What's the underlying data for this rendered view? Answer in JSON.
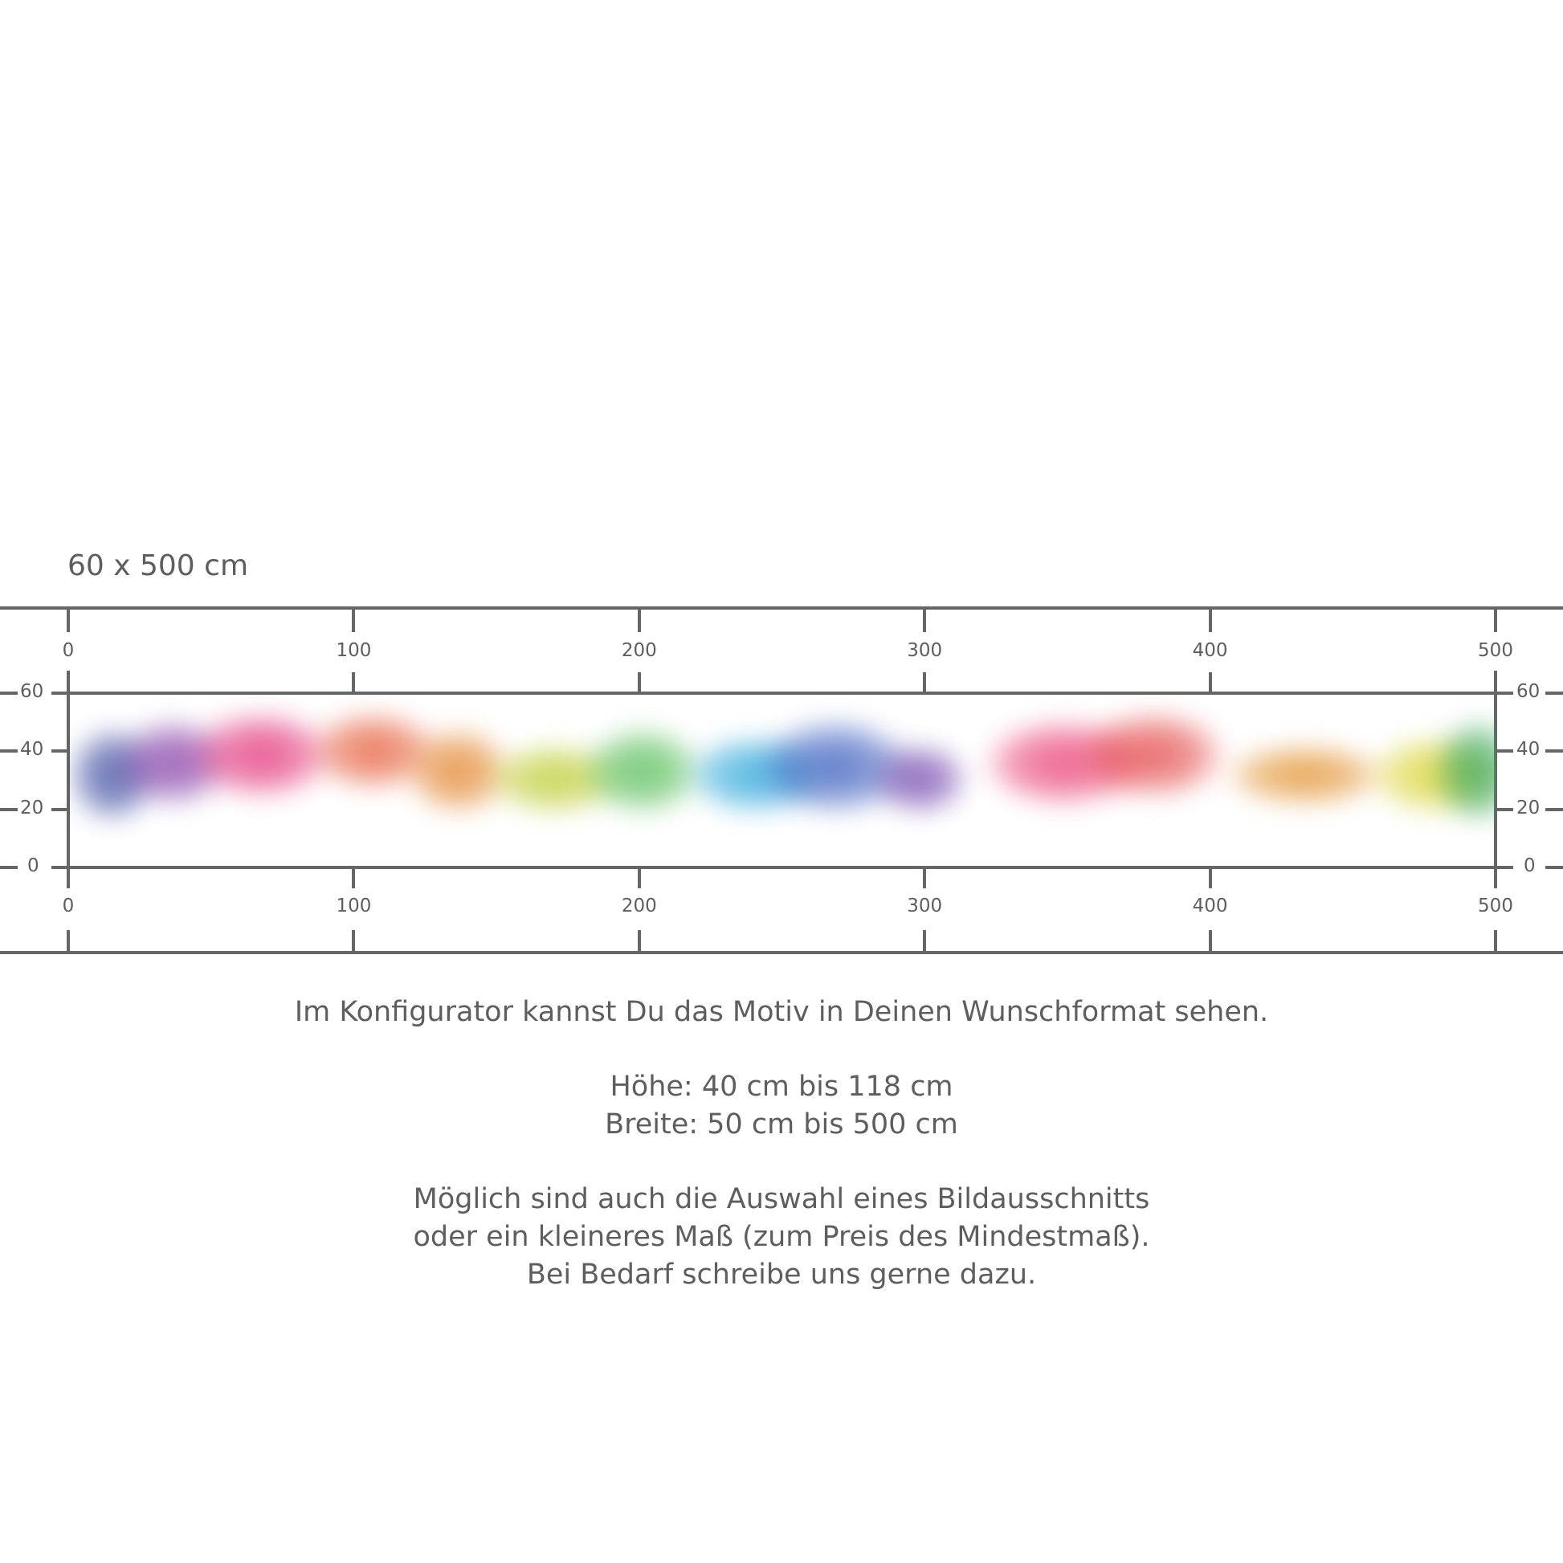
{
  "size_label": "60 x 500 cm",
  "ruler": {
    "x_ticks": [
      "0",
      "100",
      "200",
      "300",
      "400",
      "500"
    ],
    "y_ticks": [
      "60",
      "40",
      "20",
      "0"
    ]
  },
  "motif": {
    "name": "rainbow-smoke",
    "colors": [
      "#2f3f9a",
      "#7a2fa0",
      "#e0226e",
      "#e4502a",
      "#e07a1a",
      "#b8c81e",
      "#48b84a",
      "#1aa0d8",
      "#2a50b8",
      "#6a3aa8",
      "#e8306a",
      "#e23a3a",
      "#e08a20",
      "#d8d020",
      "#2aa050"
    ]
  },
  "info": {
    "line1": "Im Konfigurator kannst Du das Motiv in Deinen Wunschformat sehen.",
    "hoehe": "Höhe: 40 cm bis 118 cm",
    "breite": "Breite: 50 cm bis 500 cm",
    "note1": "Möglich sind auch die Auswahl eines Bildausschnitts",
    "note2": "oder ein kleineres Maß (zum Preis des Mindestmaß).",
    "note3": "Bei Bedarf schreibe uns gerne dazu."
  }
}
